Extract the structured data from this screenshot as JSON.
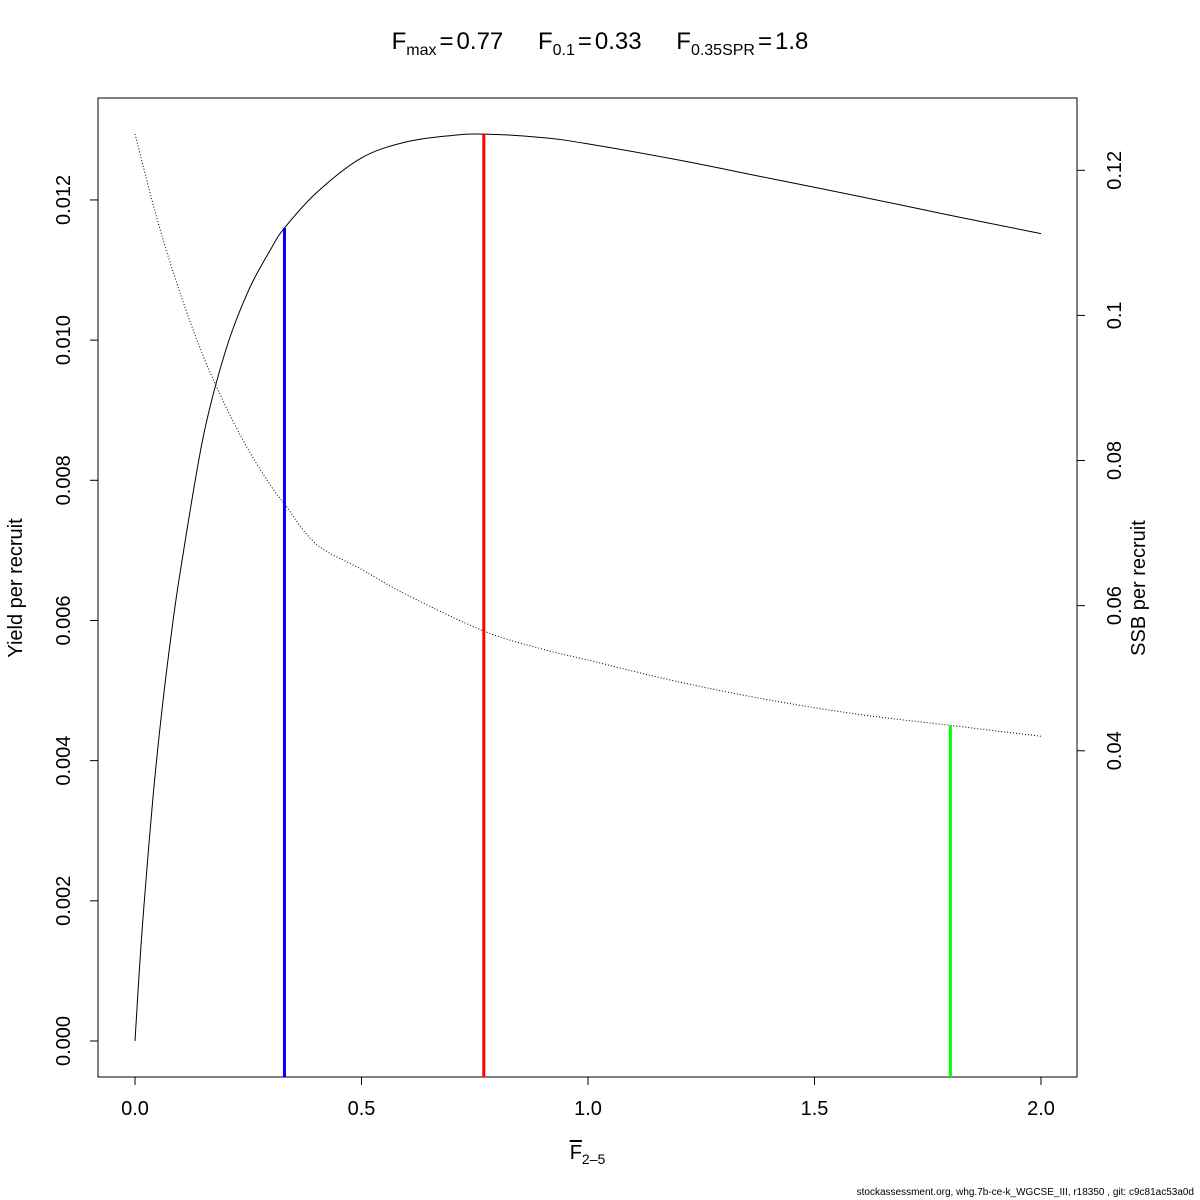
{
  "title": {
    "parts": [
      {
        "main": "F",
        "sub": "max",
        "value": "0.77"
      },
      {
        "main": "F",
        "sub": "0.1",
        "value": "0.33"
      },
      {
        "main": "F",
        "sub": "0.35SPR",
        "value": "1.8"
      }
    ],
    "equals": "="
  },
  "xlabel": {
    "main": "F",
    "sub": "2–5"
  },
  "footer": "stockassessment.org, whg.7b-ce-k_WGCSE_III, r18350 , git: c9c81ac53a0d",
  "chart_data": {
    "type": "line",
    "xlabel": "F 2–5",
    "ylabel": "Yield per recruit",
    "y2label": "SSB per recruit",
    "xlim": [
      0.0,
      2.0
    ],
    "ylim": [
      0.0,
      0.012941
    ],
    "y2lim": [
      0.0,
      0.125
    ],
    "x_ticks": [
      "0.0",
      "0.5",
      "1.0",
      "1.5",
      "2.0"
    ],
    "y_ticks": [
      "0.000",
      "0.002",
      "0.004",
      "0.006",
      "0.008",
      "0.010",
      "0.012"
    ],
    "y2_ticks": [
      "0.04",
      "0.06",
      "0.08",
      "0.1",
      "0.12"
    ],
    "grid": false,
    "series": [
      {
        "axis": "left",
        "color": "#000000",
        "style": "solid",
        "x": [
          0.0,
          0.01,
          0.02,
          0.04,
          0.06,
          0.08,
          0.1,
          0.15,
          0.2,
          0.25,
          0.3,
          0.33,
          0.4,
          0.5,
          0.6,
          0.7,
          0.77,
          0.9,
          1.0,
          1.2,
          1.4,
          1.6,
          1.8,
          2.0
        ],
        "y": [
          0.0,
          0.00105,
          0.00195,
          0.0035,
          0.00475,
          0.0058,
          0.0067,
          0.0086,
          0.00985,
          0.0107,
          0.0113,
          0.0116,
          0.0121,
          0.0126,
          0.01283,
          0.01292,
          0.01294,
          0.01289,
          0.0128,
          0.01257,
          0.01231,
          0.01205,
          0.01178,
          0.01152
        ]
      },
      {
        "axis": "right",
        "color": "#000000",
        "style": "dotted",
        "x": [
          0.0,
          0.05,
          0.1,
          0.15,
          0.2,
          0.25,
          0.3,
          0.33,
          0.4,
          0.5,
          0.6,
          0.77,
          0.9,
          1.0,
          1.2,
          1.4,
          1.6,
          1.8,
          2.0
        ],
        "y": [
          0.125,
          0.113,
          0.103,
          0.0945,
          0.0875,
          0.0815,
          0.0765,
          0.074,
          0.0685,
          0.065,
          0.0615,
          0.0565,
          0.054,
          0.0525,
          0.0495,
          0.047,
          0.045,
          0.0435,
          0.042
        ]
      }
    ],
    "reference_lines": [
      {
        "label": "Fmax",
        "x": 0.77,
        "axis": "left",
        "y": 0.01294,
        "color": "#ff0000"
      },
      {
        "label": "F0.1",
        "x": 0.33,
        "axis": "left",
        "y": 0.0116,
        "color": "#0000ff"
      },
      {
        "label": "F0.35SPR",
        "x": 1.8,
        "axis": "right",
        "y": 0.0435,
        "color": "#00ff00"
      }
    ]
  }
}
